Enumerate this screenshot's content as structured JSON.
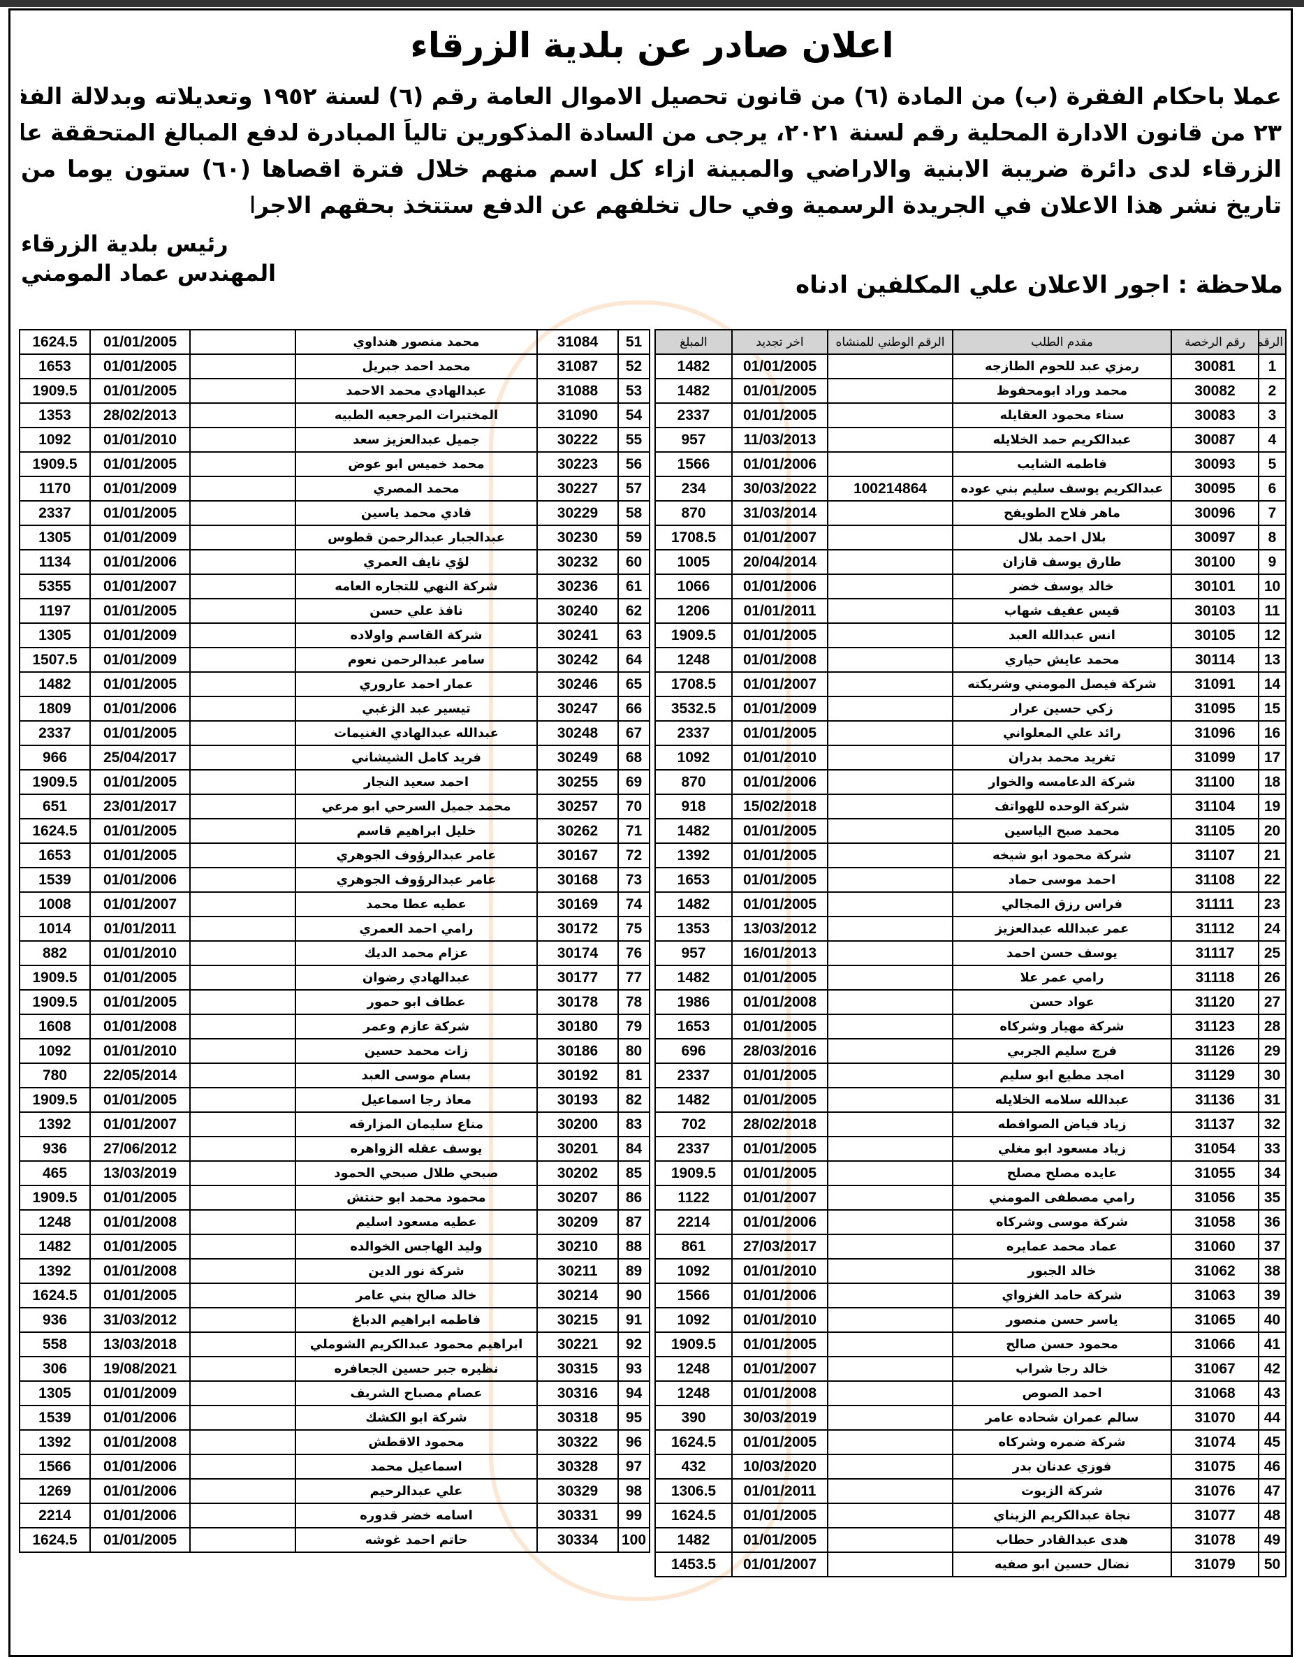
{
  "title": "اعلان صادر عن بلدية الزرقاء",
  "body_lines": [
    "عملا باحكام الفقرة (ب) من المادة (٦) من قانون تحصيل الاموال العامة رقم (٦) لسنة ١٩٥٢ وتعديلاته وبدلالة الفقرة ج من المادة",
    "٢٣ من قانون الادارة المحلية رقم لسنة ٢٠٢١، يرجى من السادة المذكورين تالياً المبادرة لدفع المبالغ المتحققة عليهم لحساب بلدية",
    "الزرقاء لدى دائرة ضريبة الابنية والاراضي والمبينة ازاء كل اسم منهم خلال فترة اقصاها (٦٠) ستون يوما من",
    "تاريخ نشر هذا الاعلان في الجريدة الرسمية وفي حال تخلفهم عن الدفع ستتخذ بحقهم الاجراءات القانونية اللازمة"
  ],
  "signature": {
    "line1": "رئيس بلدية الزرقاء",
    "line2": "المهندس عماد المومني"
  },
  "note": "ملاحظة : اجور الاعلان علي المكلفين ادناه",
  "headers": [
    "الرقم",
    "رقم الرخصة",
    "مقدم الطلب",
    "الرقم الوطني للمنشاه",
    "اخر تجديد",
    "المبلغ"
  ],
  "right_rows": [
    [
      "1",
      "30081",
      "رمزي عبد للحوم الطازجه",
      "",
      "01/01/2005",
      "1482"
    ],
    [
      "2",
      "30082",
      "محمد وراد ابومحفوظ",
      "",
      "01/01/2005",
      "1482"
    ],
    [
      "3",
      "30083",
      "سناء محمود العقايله",
      "",
      "01/01/2005",
      "2337"
    ],
    [
      "4",
      "30087",
      "عبدالكريم حمد الخلايله",
      "",
      "11/03/2013",
      "957"
    ],
    [
      "5",
      "30093",
      "فاطمه الشايب",
      "",
      "01/01/2006",
      "1566"
    ],
    [
      "6",
      "30095",
      "عبدالكريم يوسف سليم بني عوده",
      "100214864",
      "30/03/2022",
      "234"
    ],
    [
      "7",
      "30096",
      "ماهر فلاح الطويفح",
      "",
      "31/03/2014",
      "870"
    ],
    [
      "8",
      "30097",
      "بلال احمد بلال",
      "",
      "01/01/2007",
      "1708.5"
    ],
    [
      "9",
      "30100",
      "طارق يوسف قازان",
      "",
      "20/04/2014",
      "1005"
    ],
    [
      "10",
      "30101",
      "خالد يوسف خضر",
      "",
      "01/01/2006",
      "1066"
    ],
    [
      "11",
      "30103",
      "قيس عفيف شهاب",
      "",
      "01/01/2011",
      "1206"
    ],
    [
      "12",
      "30105",
      "انس عبدالله العبد",
      "",
      "01/01/2005",
      "1909.5"
    ],
    [
      "13",
      "30114",
      "محمد عايش حياري",
      "",
      "01/01/2008",
      "1248"
    ],
    [
      "14",
      "31091",
      "شركة فيصل المومني وشريكته",
      "",
      "01/01/2007",
      "1708.5"
    ],
    [
      "15",
      "31095",
      "زكي حسين عرار",
      "",
      "01/01/2009",
      "3532.5"
    ],
    [
      "16",
      "31096",
      "رائد علي المعلواني",
      "",
      "01/01/2005",
      "2337"
    ],
    [
      "17",
      "31099",
      "تغريد محمد بدران",
      "",
      "01/01/2010",
      "1092"
    ],
    [
      "18",
      "31100",
      "شركة الدعامسه والخوار",
      "",
      "01/01/2006",
      "870"
    ],
    [
      "19",
      "31104",
      "شركة الوحده للهواتف",
      "",
      "15/02/2018",
      "918"
    ],
    [
      "20",
      "31105",
      "محمد صبح الياسين",
      "",
      "01/01/2005",
      "1482"
    ],
    [
      "21",
      "31107",
      "شركة محمود ابو شيخه",
      "",
      "01/01/2005",
      "1392"
    ],
    [
      "22",
      "31108",
      "احمد موسى حماد",
      "",
      "01/01/2005",
      "1653"
    ],
    [
      "23",
      "31111",
      "فراس رزق المجالي",
      "",
      "01/01/2005",
      "1482"
    ],
    [
      "24",
      "31112",
      "عمر عبدالله عبدالعزيز",
      "",
      "13/03/2012",
      "1353"
    ],
    [
      "25",
      "31117",
      "يوسف حسن احمد",
      "",
      "16/01/2013",
      "957"
    ],
    [
      "26",
      "31118",
      "رامي عمر علا",
      "",
      "01/01/2005",
      "1482"
    ],
    [
      "27",
      "31120",
      "عواد حسن",
      "",
      "01/01/2008",
      "1986"
    ],
    [
      "28",
      "31123",
      "شركة مهيار وشركاه",
      "",
      "01/01/2005",
      "1653"
    ],
    [
      "29",
      "31126",
      "فرج سليم الجربي",
      "",
      "28/03/2016",
      "696"
    ],
    [
      "30",
      "31129",
      "امجد مطيع ابو سليم",
      "",
      "01/01/2005",
      "2337"
    ],
    [
      "31",
      "31136",
      "عبدالله سلامه الخلايله",
      "",
      "01/01/2005",
      "1482"
    ],
    [
      "32",
      "31137",
      "زياد فياض الصوافطه",
      "",
      "28/02/2018",
      "702"
    ],
    [
      "33",
      "31054",
      "زياد مسعود ابو مغلي",
      "",
      "01/01/2005",
      "2337"
    ],
    [
      "34",
      "31055",
      "عايده مصلح مصلح",
      "",
      "01/01/2005",
      "1909.5"
    ],
    [
      "35",
      "31056",
      "رامي مصطفى المومني",
      "",
      "01/01/2007",
      "1122"
    ],
    [
      "36",
      "31058",
      "شركة موسى وشركاه",
      "",
      "01/01/2006",
      "2214"
    ],
    [
      "37",
      "31060",
      "عماد محمد عمايره",
      "",
      "27/03/2017",
      "861"
    ],
    [
      "38",
      "31062",
      "خالد الجبور",
      "",
      "01/01/2010",
      "1092"
    ],
    [
      "39",
      "31063",
      "شركة حامد الغزواي",
      "",
      "01/01/2006",
      "1566"
    ],
    [
      "40",
      "31065",
      "ياسر حسن منصور",
      "",
      "01/01/2010",
      "1092"
    ],
    [
      "41",
      "31066",
      "محمود حسن صالح",
      "",
      "01/01/2005",
      "1909.5"
    ],
    [
      "42",
      "31067",
      "خالد رجا شراب",
      "",
      "01/01/2007",
      "1248"
    ],
    [
      "43",
      "31068",
      "احمد الصوص",
      "",
      "01/01/2008",
      "1248"
    ],
    [
      "44",
      "31070",
      "سالم عمران شحاده عامر",
      "",
      "30/03/2019",
      "390"
    ],
    [
      "45",
      "31074",
      "شركة ضمره وشركاه",
      "",
      "01/01/2005",
      "1624.5"
    ],
    [
      "46",
      "31075",
      "فوزي عدنان بدر",
      "",
      "10/03/2020",
      "432"
    ],
    [
      "47",
      "31076",
      "شركة الزبوت",
      "",
      "01/01/2011",
      "1306.5"
    ],
    [
      "48",
      "31077",
      "نجاة عبدالكريم الزيناي",
      "",
      "01/01/2005",
      "1624.5"
    ],
    [
      "49",
      "31078",
      "هدى عبدالقادر حطاب",
      "",
      "01/01/2005",
      "1482"
    ],
    [
      "50",
      "31079",
      "نضال حسين ابو صفيه",
      "",
      "01/01/2007",
      "1453.5"
    ]
  ],
  "left_rows": [
    [
      "51",
      "31084",
      "محمد منصور هنداوي",
      "",
      "01/01/2005",
      "1624.5"
    ],
    [
      "52",
      "31087",
      "محمد احمد جبريل",
      "",
      "01/01/2005",
      "1653"
    ],
    [
      "53",
      "31088",
      "عبدالهادي محمد الاحمد",
      "",
      "01/01/2005",
      "1909.5"
    ],
    [
      "54",
      "31090",
      "المختبرات المرجعيه الطبيه",
      "",
      "28/02/2013",
      "1353"
    ],
    [
      "55",
      "30222",
      "جميل عبدالعزيز سعد",
      "",
      "01/01/2010",
      "1092"
    ],
    [
      "56",
      "30223",
      "محمد خميس ابو عوض",
      "",
      "01/01/2005",
      "1909.5"
    ],
    [
      "57",
      "30227",
      "محمد المصري",
      "",
      "01/01/2009",
      "1170"
    ],
    [
      "58",
      "30229",
      "فادي محمد ياسين",
      "",
      "01/01/2005",
      "2337"
    ],
    [
      "59",
      "30230",
      "عبدالجبار عبدالرحمن قطوس",
      "",
      "01/01/2009",
      "1305"
    ],
    [
      "60",
      "30232",
      "لؤي نايف العمري",
      "",
      "01/01/2006",
      "1134"
    ],
    [
      "61",
      "30236",
      "شركة النهي للتجاره العامه",
      "",
      "01/01/2007",
      "5355"
    ],
    [
      "62",
      "30240",
      "نافذ علي حسن",
      "",
      "01/01/2005",
      "1197"
    ],
    [
      "63",
      "30241",
      "شركة القاسم واولاده",
      "",
      "01/01/2009",
      "1305"
    ],
    [
      "64",
      "30242",
      "سامر عبدالرحمن نعوم",
      "",
      "01/01/2009",
      "1507.5"
    ],
    [
      "65",
      "30246",
      "عمار احمد عاروري",
      "",
      "01/01/2005",
      "1482"
    ],
    [
      "66",
      "30247",
      "تيسير عبد الزغبي",
      "",
      "01/01/2006",
      "1809"
    ],
    [
      "67",
      "30248",
      "عبدالله عبدالهادي الغنيمات",
      "",
      "01/01/2005",
      "2337"
    ],
    [
      "68",
      "30249",
      "فريد كامل الشيشاني",
      "",
      "25/04/2017",
      "966"
    ],
    [
      "69",
      "30255",
      "احمد سعيد النجار",
      "",
      "01/01/2005",
      "1909.5"
    ],
    [
      "70",
      "30257",
      "محمد جميل السرحي ابو مرعي",
      "",
      "23/01/2017",
      "651"
    ],
    [
      "71",
      "30262",
      "خليل ابراهيم قاسم",
      "",
      "01/01/2005",
      "1624.5"
    ],
    [
      "72",
      "30167",
      "عامر عبدالرؤوف الجوهري",
      "",
      "01/01/2005",
      "1653"
    ],
    [
      "73",
      "30168",
      "عامر عبدالرؤوف الجوهري",
      "",
      "01/01/2006",
      "1539"
    ],
    [
      "74",
      "30169",
      "عطيه عطا محمد",
      "",
      "01/01/2007",
      "1008"
    ],
    [
      "75",
      "30172",
      "رامي احمد العمري",
      "",
      "01/01/2011",
      "1014"
    ],
    [
      "76",
      "30174",
      "عزام محمد الديك",
      "",
      "01/01/2010",
      "882"
    ],
    [
      "77",
      "30177",
      "عبدالهادي رضوان",
      "",
      "01/01/2005",
      "1909.5"
    ],
    [
      "78",
      "30178",
      "عطاف ابو حمور",
      "",
      "01/01/2005",
      "1909.5"
    ],
    [
      "79",
      "30180",
      "شركة عازم وعمر",
      "",
      "01/01/2008",
      "1608"
    ],
    [
      "80",
      "30186",
      "زات محمد حسين",
      "",
      "01/01/2010",
      "1092"
    ],
    [
      "81",
      "30192",
      "بسام موسى العبد",
      "",
      "22/05/2014",
      "780"
    ],
    [
      "82",
      "30193",
      "معاذ رجا اسماعيل",
      "",
      "01/01/2005",
      "1909.5"
    ],
    [
      "83",
      "30200",
      "مناع سليمان المزارقه",
      "",
      "01/01/2007",
      "1392"
    ],
    [
      "84",
      "30201",
      "يوسف عقله الزواهره",
      "",
      "27/06/2012",
      "936"
    ],
    [
      "85",
      "30202",
      "صبحي طلال صبحي الحمود",
      "",
      "13/03/2019",
      "465"
    ],
    [
      "86",
      "30207",
      "محمود محمد ابو حنتش",
      "",
      "01/01/2005",
      "1909.5"
    ],
    [
      "87",
      "30209",
      "عطيه مسعود اسليم",
      "",
      "01/01/2008",
      "1248"
    ],
    [
      "88",
      "30210",
      "وليد الهاجس الخوالده",
      "",
      "01/01/2005",
      "1482"
    ],
    [
      "89",
      "30211",
      "شركة نور الدين",
      "",
      "01/01/2008",
      "1392"
    ],
    [
      "90",
      "30214",
      "خالد صالح بني عامر",
      "",
      "01/01/2005",
      "1624.5"
    ],
    [
      "91",
      "30215",
      "فاطمه ابراهيم الدباغ",
      "",
      "31/03/2012",
      "936"
    ],
    [
      "92",
      "30221",
      "ابراهيم محمود عبدالكريم الشوملي",
      "",
      "13/03/2018",
      "558"
    ],
    [
      "93",
      "30315",
      "نظيره جبر حسين الجعافره",
      "",
      "19/08/2021",
      "306"
    ],
    [
      "94",
      "30316",
      "عصام مصباح الشريف",
      "",
      "01/01/2009",
      "1305"
    ],
    [
      "95",
      "30318",
      "شركة ابو الكشك",
      "",
      "01/01/2006",
      "1539"
    ],
    [
      "96",
      "30322",
      "محمود الاقطش",
      "",
      "01/01/2008",
      "1392"
    ],
    [
      "97",
      "30328",
      "اسماعيل محمد",
      "",
      "01/01/2006",
      "1566"
    ],
    [
      "98",
      "30329",
      "علي عبدالرحيم",
      "",
      "01/01/2006",
      "1269"
    ],
    [
      "99",
      "30331",
      "اسامه خضر قدوره",
      "",
      "01/01/2006",
      "2214"
    ],
    [
      "100",
      "30334",
      "حاتم احمد غوشه",
      "",
      "01/01/2005",
      "1624.5"
    ]
  ]
}
